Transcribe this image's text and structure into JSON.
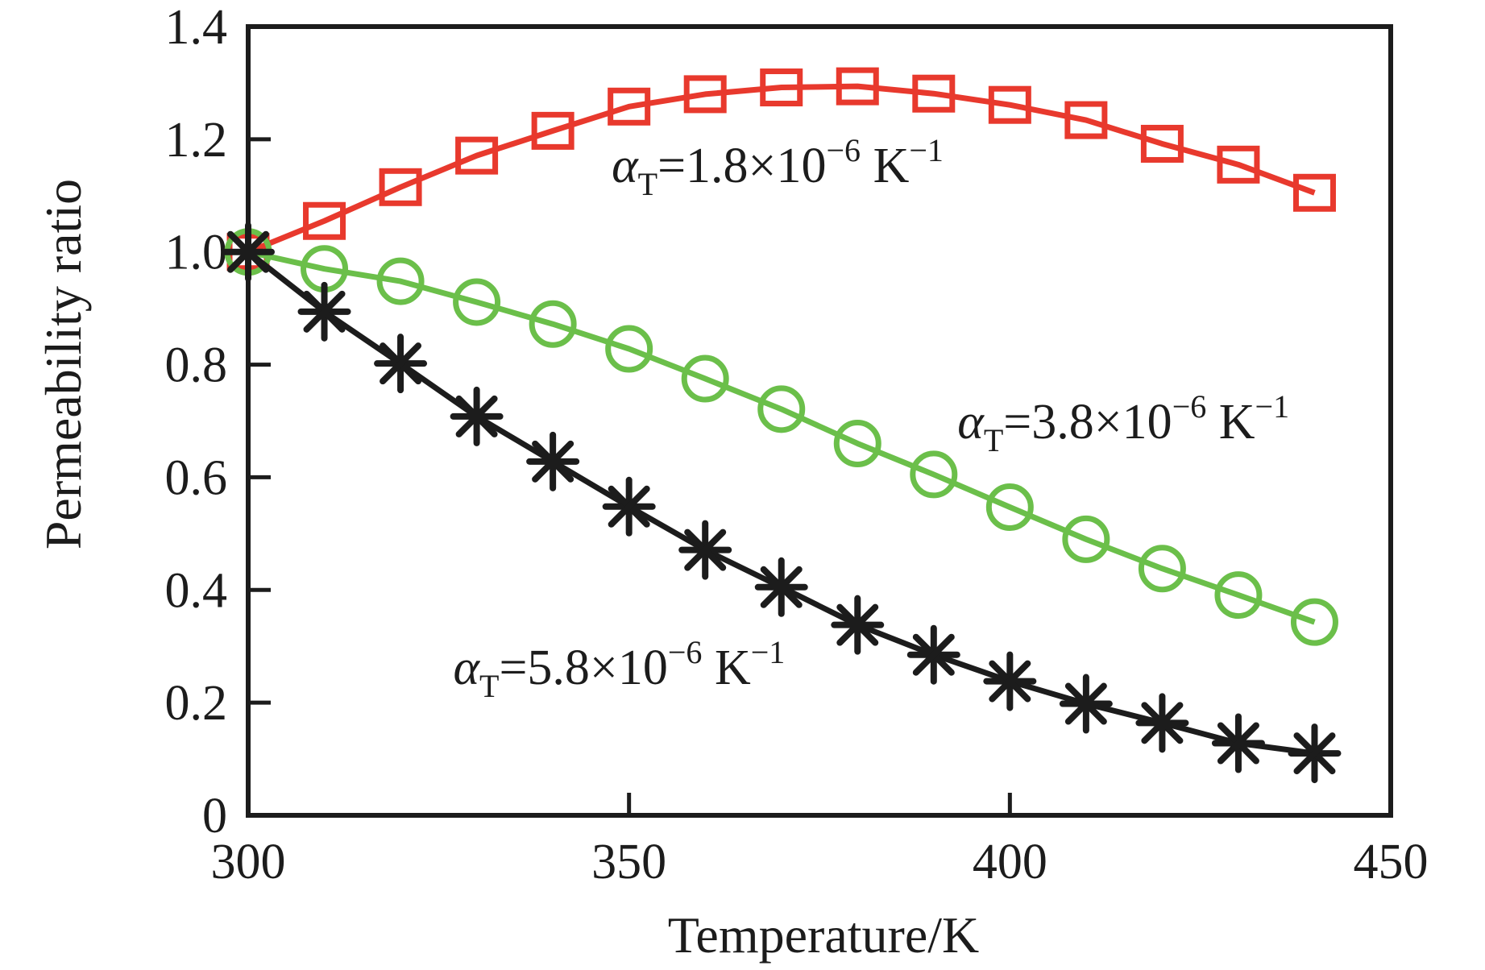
{
  "figure": {
    "background": "#ffffff",
    "text_color": "#1c1c1c",
    "frame_color": "#1c1c1c"
  },
  "chart_data": {
    "type": "line",
    "title": "",
    "xlabel": "Temperature/K",
    "ylabel": "Permeability ratio",
    "xlim": [
      300,
      450
    ],
    "ylim": [
      0,
      1.4
    ],
    "grid": false,
    "legend_position": "inline-annotations",
    "x_ticks": [
      {
        "v": 300,
        "label": "300"
      },
      {
        "v": 350,
        "label": "350"
      },
      {
        "v": 400,
        "label": "400"
      },
      {
        "v": 450,
        "label": "450"
      }
    ],
    "y_ticks": [
      {
        "v": 0,
        "label": "0"
      },
      {
        "v": 0.2,
        "label": "0.2"
      },
      {
        "v": 0.4,
        "label": "0.4"
      },
      {
        "v": 0.6,
        "label": "0.6"
      },
      {
        "v": 0.8,
        "label": "0.8"
      },
      {
        "v": 1.0,
        "label": "1.0"
      },
      {
        "v": 1.2,
        "label": "1.2"
      },
      {
        "v": 1.4,
        "label": "1.4"
      }
    ],
    "x": [
      300,
      310,
      320,
      330,
      340,
      350,
      360,
      370,
      380,
      390,
      400,
      410,
      420,
      430,
      440
    ],
    "series": [
      {
        "name": "alpha_T = 1.8e-6 K^-1",
        "marker": "square",
        "color": "#e8392d",
        "values": [
          1.0,
          1.055,
          1.115,
          1.171,
          1.215,
          1.258,
          1.28,
          1.292,
          1.294,
          1.281,
          1.261,
          1.234,
          1.192,
          1.155,
          1.105
        ]
      },
      {
        "name": "alpha_T = 3.8e-6 K^-1",
        "marker": "circle",
        "color": "#6bbf4a",
        "values": [
          1.0,
          0.97,
          0.948,
          0.911,
          0.872,
          0.828,
          0.775,
          0.721,
          0.66,
          0.605,
          0.547,
          0.49,
          0.438,
          0.391,
          0.343
        ]
      },
      {
        "name": "alpha_T = 5.8e-6 K^-1",
        "marker": "asterisk",
        "color": "#1c1c1c",
        "values": [
          1.0,
          0.894,
          0.802,
          0.708,
          0.628,
          0.548,
          0.471,
          0.405,
          0.338,
          0.285,
          0.238,
          0.198,
          0.164,
          0.128,
          0.11
        ]
      }
    ],
    "annotations": [
      {
        "name": "label-alpha-1.8",
        "anchor_x": 369.5,
        "anchor_y": 1.154,
        "color": "#1c1c1c",
        "parts": [
          {
            "t": "α",
            "italic": true
          },
          {
            "t": "T",
            "pos": "sub"
          },
          {
            "t": "=1.8×10"
          },
          {
            "t": "−6",
            "pos": "sup"
          },
          {
            "t": " K"
          },
          {
            "t": "−1",
            "pos": "sup"
          }
        ]
      },
      {
        "name": "label-alpha-3.8",
        "anchor_x": 414.9,
        "anchor_y": 0.699,
        "color": "#1c1c1c",
        "parts": [
          {
            "t": "α",
            "italic": true
          },
          {
            "t": "T",
            "pos": "sub"
          },
          {
            "t": "=3.8×10"
          },
          {
            "t": "−6",
            "pos": "sup"
          },
          {
            "t": " K"
          },
          {
            "t": "−1",
            "pos": "sup"
          }
        ]
      },
      {
        "name": "label-alpha-5.8",
        "anchor_x": 348.7,
        "anchor_y": 0.263,
        "color": "#1c1c1c",
        "parts": [
          {
            "t": "α",
            "italic": true
          },
          {
            "t": "T",
            "pos": "sub"
          },
          {
            "t": "=5.8×10"
          },
          {
            "t": "−6",
            "pos": "sup"
          },
          {
            "t": " K"
          },
          {
            "t": "−1",
            "pos": "sup"
          }
        ]
      }
    ]
  }
}
